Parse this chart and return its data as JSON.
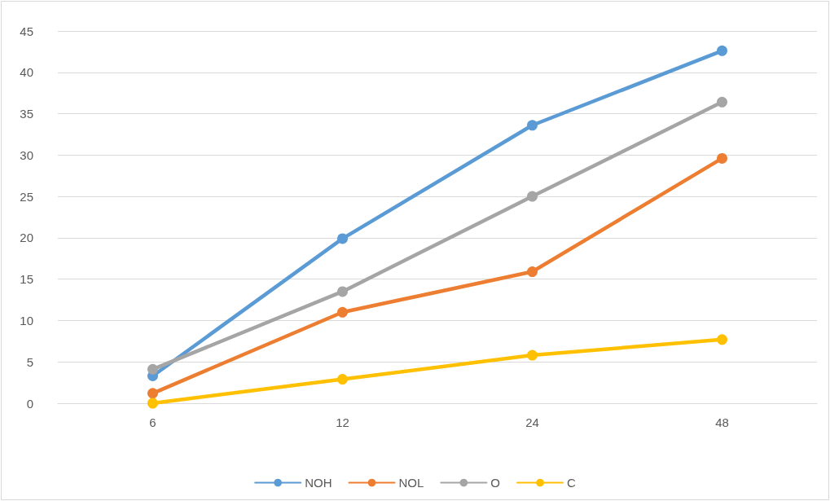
{
  "chart_data": {
    "type": "line",
    "categories": [
      "6",
      "12",
      "24",
      "48"
    ],
    "series": [
      {
        "name": "NOH",
        "color": "#5b9bd5",
        "values": [
          3.3,
          19.9,
          33.6,
          42.6
        ]
      },
      {
        "name": "NOL",
        "color": "#ed7d31",
        "values": [
          1.2,
          11,
          15.9,
          29.6
        ]
      },
      {
        "name": "O",
        "color": "#a5a5a5",
        "values": [
          4.1,
          13.5,
          25,
          36.4
        ]
      },
      {
        "name": "C",
        "color": "#ffc000",
        "values": [
          0,
          2.9,
          5.8,
          7.7
        ]
      }
    ],
    "ylim": [
      0,
      45
    ],
    "yticks": [
      0,
      5,
      10,
      15,
      20,
      25,
      30,
      35,
      40,
      45
    ],
    "grid": "y",
    "legend": "bottom",
    "marker": "circle",
    "line_style": "solid"
  }
}
